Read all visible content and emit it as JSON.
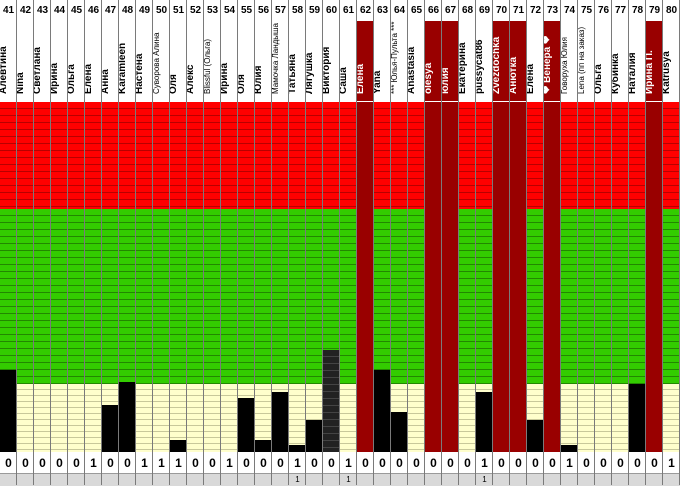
{
  "colors": {
    "red": "#ff0000",
    "green": "#33cc00",
    "yellow": "#ffffcc",
    "highlight": "#990000",
    "bar": "#000000"
  },
  "columns": [
    {
      "num": "41",
      "name": "Алевтина",
      "score": "0",
      "extra": "",
      "level": 0.235
    },
    {
      "num": "42",
      "name": "Nina",
      "score": "0",
      "extra": "",
      "level": 0.0
    },
    {
      "num": "43",
      "name": "Светлана",
      "score": "0",
      "extra": "",
      "level": 0.0
    },
    {
      "num": "44",
      "name": "Ирина",
      "score": "0",
      "extra": "",
      "level": 0.0
    },
    {
      "num": "45",
      "name": "Ольга",
      "score": "0",
      "extra": "",
      "level": 0.0
    },
    {
      "num": "46",
      "name": "Елена",
      "score": "1",
      "extra": "",
      "level": 0.0
    },
    {
      "num": "47",
      "name": "Анна",
      "score": "0",
      "extra": "",
      "level": 0.135
    },
    {
      "num": "48",
      "name": "Karamleen",
      "score": "0",
      "extra": "",
      "level": 0.2
    },
    {
      "num": "49",
      "name": "Настена",
      "score": "1",
      "extra": "",
      "level": 0.0
    },
    {
      "num": "50",
      "name": "Суворова Алина",
      "score": "1",
      "extra": "",
      "level": 0.0,
      "small": true
    },
    {
      "num": "51",
      "name": "Оля",
      "score": "1",
      "extra": "",
      "level": 0.035
    },
    {
      "num": "52",
      "name": "Алекс",
      "score": "0",
      "extra": "",
      "level": 0.0
    },
    {
      "num": "53",
      "name": "Blissful (Ольга)",
      "score": "0",
      "extra": "",
      "level": 0.0,
      "small": true
    },
    {
      "num": "54",
      "name": "Ирина",
      "score": "1",
      "extra": "",
      "level": 0.0
    },
    {
      "num": "55",
      "name": "Оля",
      "score": "0",
      "extra": "",
      "level": 0.155
    },
    {
      "num": "56",
      "name": "Юлия",
      "score": "0",
      "extra": "",
      "level": 0.035
    },
    {
      "num": "57",
      "name": "Мамочка Ландыша",
      "score": "0",
      "extra": "",
      "level": 0.17,
      "small": true
    },
    {
      "num": "58",
      "name": "Татьяна",
      "score": "1",
      "extra": "1",
      "level": 0.02
    },
    {
      "num": "59",
      "name": "Лягушка",
      "score": "0",
      "extra": "",
      "level": 0.09
    },
    {
      "num": "60",
      "name": "Виктория",
      "score": "0",
      "extra": "",
      "level": 0.29,
      "dark": "#222222"
    },
    {
      "num": "61",
      "name": "Саша",
      "score": "1",
      "extra": "1",
      "level": 0.0
    },
    {
      "num": "62",
      "name": "Елена",
      "score": "0",
      "extra": "",
      "level": 0.0,
      "highlight": true
    },
    {
      "num": "63",
      "name": "Yana",
      "score": "0",
      "extra": "",
      "level": 0.235
    },
    {
      "num": "64",
      "name": "*** Юлья-Пульта ***",
      "score": "0",
      "extra": "",
      "level": 0.115,
      "small": true
    },
    {
      "num": "65",
      "name": "Anastasia",
      "score": "0",
      "extra": "",
      "level": 0.0
    },
    {
      "num": "66",
      "name": "olesya",
      "score": "0",
      "extra": "",
      "level": 0.0,
      "highlight": true
    },
    {
      "num": "67",
      "name": "юлия",
      "score": "0",
      "extra": "",
      "level": 0.0,
      "highlight": true
    },
    {
      "num": "68",
      "name": "Екатерина",
      "score": "0",
      "extra": "",
      "level": 0.0
    },
    {
      "num": "69",
      "name": "pussycat86",
      "score": "1",
      "extra": "1",
      "level": 0.17
    },
    {
      "num": "70",
      "name": "Zvezdochka",
      "score": "0",
      "extra": "",
      "level": 0.0,
      "highlight": true
    },
    {
      "num": "71",
      "name": "Анютка",
      "score": "0",
      "extra": "",
      "level": 0.0,
      "highlight": true
    },
    {
      "num": "72",
      "name": "Елена",
      "score": "0",
      "extra": "",
      "level": 0.09
    },
    {
      "num": "73",
      "name": "❤ Венера ❤",
      "score": "0",
      "extra": "",
      "level": 0.0,
      "highlight": true
    },
    {
      "num": "74",
      "name": "Говоруха Юлия",
      "score": "1",
      "extra": "",
      "level": 0.02,
      "small": true
    },
    {
      "num": "75",
      "name": "Lena (пп на заказ)",
      "score": "0",
      "extra": "",
      "level": 0.0,
      "small": true
    },
    {
      "num": "76",
      "name": "Ольга",
      "score": "0",
      "extra": "",
      "level": 0.0
    },
    {
      "num": "77",
      "name": "Кубинка",
      "score": "0",
      "extra": "",
      "level": 0.0
    },
    {
      "num": "78",
      "name": "Наталия",
      "score": "0",
      "extra": "",
      "level": 0.195
    },
    {
      "num": "79",
      "name": "Ирина П.",
      "score": "0",
      "extra": "",
      "level": 0.0,
      "highlight": true
    },
    {
      "num": "80",
      "name": "Katrusya",
      "score": "1",
      "extra": "",
      "level": 0.0
    }
  ]
}
